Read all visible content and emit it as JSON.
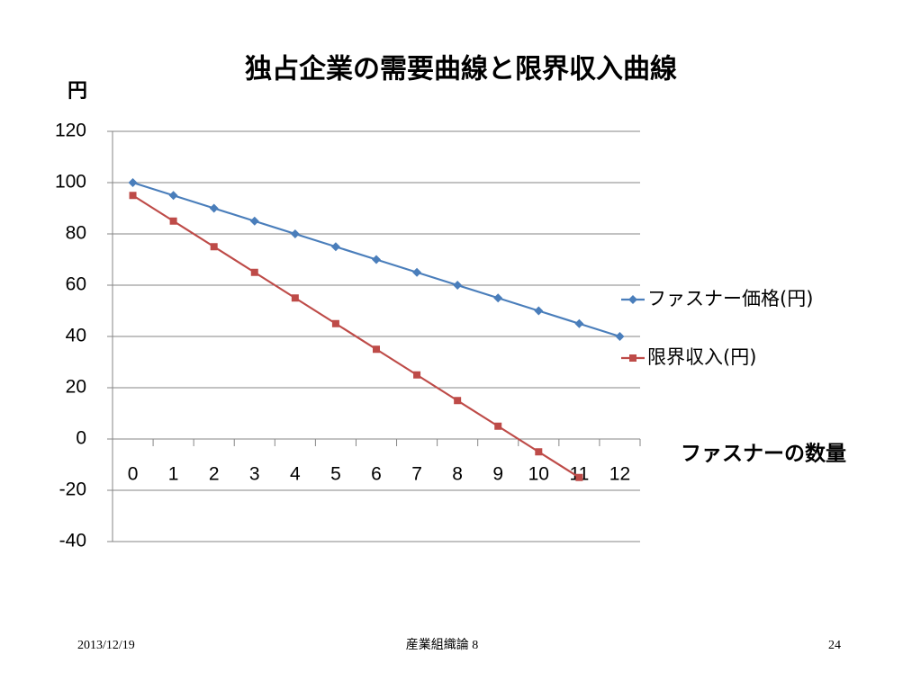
{
  "chart_data": {
    "type": "line",
    "title": "独占企業の需要曲線と限界収入曲線",
    "y_label": "円",
    "x_label": "ファスナーの数量",
    "categories": [
      "0",
      "1",
      "2",
      "3",
      "4",
      "5",
      "6",
      "7",
      "8",
      "9",
      "10",
      "11",
      "12"
    ],
    "series": [
      {
        "name": "ファスナー価格(円)",
        "color": "#4a7ebb",
        "marker": "diamond",
        "values": [
          100,
          95,
          90,
          85,
          80,
          75,
          70,
          65,
          60,
          55,
          50,
          45,
          40
        ]
      },
      {
        "name": "限界収入(円)",
        "color": "#be4b48",
        "marker": "square",
        "values": [
          95,
          85,
          75,
          65,
          55,
          45,
          35,
          25,
          15,
          5,
          -5,
          -15,
          null
        ]
      }
    ],
    "ylim": [
      -40,
      120
    ],
    "yticks": [
      -40,
      -20,
      0,
      20,
      40,
      60,
      80,
      100,
      120
    ],
    "grid": true,
    "legend": "right"
  },
  "footer": {
    "date": "2013/12/19",
    "course": "産業組織論 8",
    "page": "24"
  }
}
